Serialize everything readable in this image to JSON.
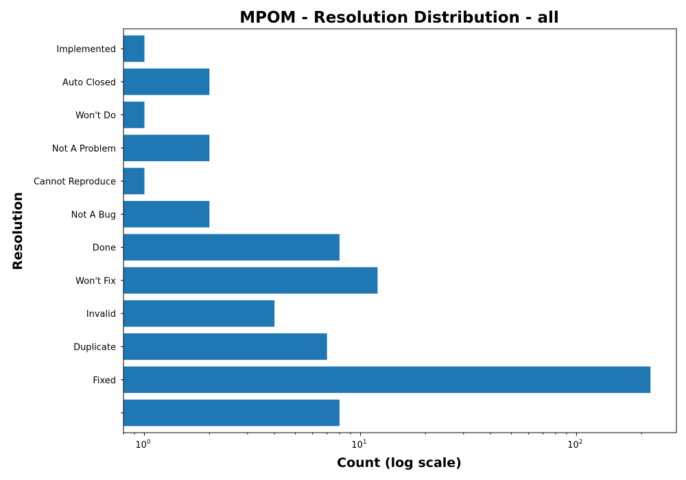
{
  "chart_data": {
    "type": "bar",
    "orientation": "horizontal",
    "title": "MPOM - Resolution Distribution - all",
    "xlabel": "Count (log scale)",
    "ylabel": "Resolution",
    "x_scale": "log",
    "xlim": [
      0.8,
      290
    ],
    "x_major_ticks": [
      {
        "value": 1,
        "base": "10",
        "exp": "0"
      },
      {
        "value": 10,
        "base": "10",
        "exp": "1"
      },
      {
        "value": 100,
        "base": "10",
        "exp": "2"
      }
    ],
    "categories": [
      "",
      "Fixed",
      "Duplicate",
      "Invalid",
      "Won't Fix",
      "Done",
      "Not A Bug",
      "Cannot Reproduce",
      "Not A Problem",
      "Won't Do",
      "Auto Closed",
      "Implemented"
    ],
    "values": [
      8,
      220,
      7,
      4,
      12,
      8,
      2,
      1,
      2,
      1,
      2,
      1
    ],
    "bar_color": "#1f77b4",
    "grid": false,
    "legend": "none"
  }
}
